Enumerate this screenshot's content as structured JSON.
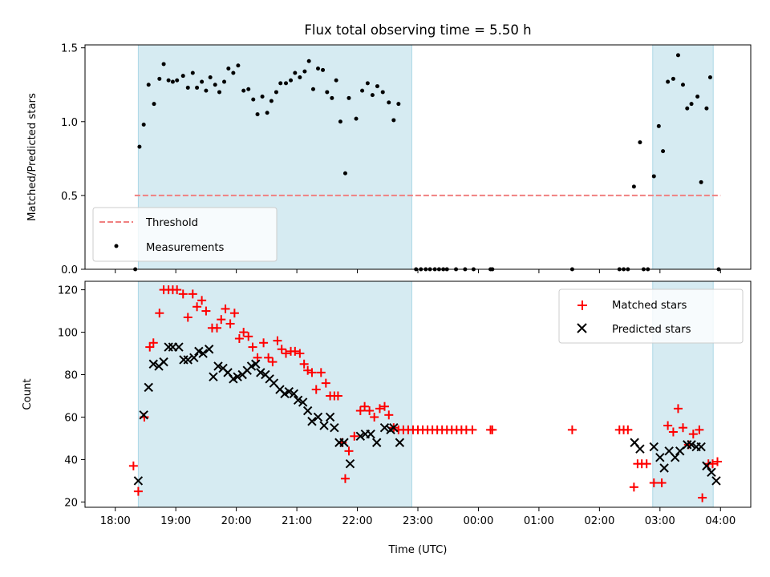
{
  "title": "Flux total observing time = 5.50 h",
  "top_ylabel": "Matched/Predicted stars",
  "bottom_ylabel": "Count",
  "xlabel": "Time (UTC)",
  "top_legend": {
    "threshold": "Threshold",
    "measurements": "Measurements"
  },
  "bottom_legend": {
    "matched": "Matched stars",
    "predicted": "Predicted stars"
  },
  "colors": {
    "shade": "#add8e6",
    "threshold": "#f08080",
    "matched": "#ff0000",
    "predicted": "#000000",
    "measure": "#000000"
  },
  "chart_data": [
    {
      "type": "scatter",
      "title": "Flux total observing time = 5.50 h",
      "xlabel": "",
      "ylabel": "Matched/Predicted stars",
      "x_unit": "hours since 18:00 UTC",
      "x_tick_labels": [
        "18:00",
        "19:00",
        "20:00",
        "21:00",
        "22:00",
        "23:00",
        "00:00",
        "01:00",
        "02:00",
        "03:00",
        "04:00"
      ],
      "xlim": [
        -0.5,
        10.5
      ],
      "ylim": [
        0,
        1.52
      ],
      "y_ticks": [
        0.0,
        0.5,
        1.0,
        1.5
      ],
      "shaded_intervals": [
        [
          0.38,
          4.9
        ],
        [
          8.88,
          9.88
        ]
      ],
      "threshold": {
        "name": "Threshold",
        "y": 0.5,
        "x_range": [
          0.32,
          10.0
        ]
      },
      "legend_position": "lower-left",
      "series": [
        {
          "name": "Measurements",
          "points": [
            [
              0.33,
              0.0
            ],
            [
              0.4,
              0.83
            ],
            [
              0.47,
              0.98
            ],
            [
              0.55,
              1.25
            ],
            [
              0.64,
              1.12
            ],
            [
              0.73,
              1.29
            ],
            [
              0.8,
              1.39
            ],
            [
              0.88,
              1.28
            ],
            [
              0.95,
              1.27
            ],
            [
              1.02,
              1.28
            ],
            [
              1.12,
              1.31
            ],
            [
              1.2,
              1.23
            ],
            [
              1.28,
              1.33
            ],
            [
              1.35,
              1.23
            ],
            [
              1.43,
              1.27
            ],
            [
              1.5,
              1.21
            ],
            [
              1.57,
              1.3
            ],
            [
              1.65,
              1.25
            ],
            [
              1.72,
              1.2
            ],
            [
              1.8,
              1.27
            ],
            [
              1.87,
              1.36
            ],
            [
              1.95,
              1.33
            ],
            [
              2.03,
              1.38
            ],
            [
              2.12,
              1.21
            ],
            [
              2.2,
              1.22
            ],
            [
              2.28,
              1.15
            ],
            [
              2.35,
              1.05
            ],
            [
              2.43,
              1.17
            ],
            [
              2.51,
              1.06
            ],
            [
              2.58,
              1.14
            ],
            [
              2.66,
              1.2
            ],
            [
              2.73,
              1.26
            ],
            [
              2.82,
              1.26
            ],
            [
              2.9,
              1.28
            ],
            [
              2.97,
              1.33
            ],
            [
              3.05,
              1.3
            ],
            [
              3.13,
              1.34
            ],
            [
              3.2,
              1.41
            ],
            [
              3.27,
              1.22
            ],
            [
              3.35,
              1.36
            ],
            [
              3.43,
              1.35
            ],
            [
              3.5,
              1.2
            ],
            [
              3.58,
              1.16
            ],
            [
              3.65,
              1.28
            ],
            [
              3.72,
              1.0
            ],
            [
              3.8,
              0.65
            ],
            [
              3.86,
              1.16
            ],
            [
              3.98,
              1.02
            ],
            [
              4.08,
              1.21
            ],
            [
              4.17,
              1.26
            ],
            [
              4.25,
              1.18
            ],
            [
              4.33,
              1.24
            ],
            [
              4.42,
              1.2
            ],
            [
              4.52,
              1.13
            ],
            [
              4.6,
              1.01
            ],
            [
              4.68,
              1.12
            ],
            [
              4.97,
              0.0
            ],
            [
              5.05,
              0.0
            ],
            [
              5.13,
              0.0
            ],
            [
              5.2,
              0.0
            ],
            [
              5.28,
              0.0
            ],
            [
              5.35,
              0.0
            ],
            [
              5.42,
              0.0
            ],
            [
              5.48,
              0.0
            ],
            [
              5.63,
              0.0
            ],
            [
              5.78,
              0.0
            ],
            [
              5.92,
              0.0
            ],
            [
              6.2,
              0.0
            ],
            [
              6.23,
              0.0
            ],
            [
              7.55,
              0.0
            ],
            [
              8.33,
              0.0
            ],
            [
              8.4,
              0.0
            ],
            [
              8.47,
              0.0
            ],
            [
              8.57,
              0.56
            ],
            [
              8.67,
              0.86
            ],
            [
              8.73,
              0.0
            ],
            [
              8.8,
              0.0
            ],
            [
              8.9,
              0.63
            ],
            [
              8.98,
              0.97
            ],
            [
              9.05,
              0.8
            ],
            [
              9.13,
              1.27
            ],
            [
              9.22,
              1.29
            ],
            [
              9.3,
              1.45
            ],
            [
              9.38,
              1.25
            ],
            [
              9.45,
              1.09
            ],
            [
              9.52,
              1.12
            ],
            [
              9.62,
              1.17
            ],
            [
              9.68,
              0.59
            ],
            [
              9.77,
              1.09
            ],
            [
              9.83,
              1.3
            ],
            [
              9.97,
              0.0
            ]
          ]
        }
      ]
    },
    {
      "type": "scatter",
      "title": "",
      "xlabel": "Time (UTC)",
      "ylabel": "Count",
      "x_unit": "hours since 18:00 UTC",
      "x_tick_labels": [
        "18:00",
        "19:00",
        "20:00",
        "21:00",
        "22:00",
        "23:00",
        "00:00",
        "01:00",
        "02:00",
        "03:00",
        "04:00"
      ],
      "xlim": [
        -0.5,
        10.5
      ],
      "ylim": [
        17.5,
        124
      ],
      "y_ticks": [
        20,
        40,
        60,
        80,
        100,
        120
      ],
      "shaded_intervals": [
        [
          0.38,
          4.9
        ],
        [
          8.88,
          9.88
        ]
      ],
      "legend_position": "upper-right",
      "series": [
        {
          "name": "Matched stars",
          "marker": "plus",
          "points": [
            [
              0.3,
              37
            ],
            [
              0.38,
              25
            ],
            [
              0.48,
              60
            ],
            [
              0.57,
              93
            ],
            [
              0.63,
              95
            ],
            [
              0.73,
              109
            ],
            [
              0.8,
              120
            ],
            [
              0.88,
              120
            ],
            [
              0.95,
              120
            ],
            [
              1.02,
              120
            ],
            [
              1.12,
              118
            ],
            [
              1.2,
              107
            ],
            [
              1.28,
              118
            ],
            [
              1.35,
              112
            ],
            [
              1.43,
              115
            ],
            [
              1.5,
              110
            ],
            [
              1.6,
              102
            ],
            [
              1.68,
              102
            ],
            [
              1.75,
              106
            ],
            [
              1.82,
              111
            ],
            [
              1.9,
              104
            ],
            [
              1.97,
              109
            ],
            [
              2.05,
              97
            ],
            [
              2.12,
              100
            ],
            [
              2.2,
              98
            ],
            [
              2.27,
              93
            ],
            [
              2.35,
              88
            ],
            [
              2.45,
              95
            ],
            [
              2.53,
              88
            ],
            [
              2.6,
              86
            ],
            [
              2.68,
              96
            ],
            [
              2.75,
              92
            ],
            [
              2.82,
              90
            ],
            [
              2.9,
              91
            ],
            [
              2.97,
              91
            ],
            [
              3.05,
              90
            ],
            [
              3.12,
              85
            ],
            [
              3.18,
              82
            ],
            [
              3.25,
              81
            ],
            [
              3.32,
              73
            ],
            [
              3.4,
              81
            ],
            [
              3.48,
              76
            ],
            [
              3.55,
              70
            ],
            [
              3.62,
              70
            ],
            [
              3.68,
              70
            ],
            [
              3.75,
              48
            ],
            [
              3.8,
              31
            ],
            [
              3.86,
              44
            ],
            [
              3.95,
              51
            ],
            [
              4.05,
              63
            ],
            [
              4.12,
              65
            ],
            [
              4.2,
              63
            ],
            [
              4.28,
              60
            ],
            [
              4.37,
              64
            ],
            [
              4.45,
              65
            ],
            [
              4.52,
              61
            ],
            [
              4.6,
              55
            ],
            [
              4.68,
              54
            ],
            [
              4.76,
              54
            ],
            [
              4.84,
              54
            ],
            [
              4.92,
              54
            ],
            [
              5.0,
              54
            ],
            [
              5.08,
              54
            ],
            [
              5.16,
              54
            ],
            [
              5.24,
              54
            ],
            [
              5.32,
              54
            ],
            [
              5.4,
              54
            ],
            [
              5.48,
              54
            ],
            [
              5.56,
              54
            ],
            [
              5.64,
              54
            ],
            [
              5.72,
              54
            ],
            [
              5.8,
              54
            ],
            [
              5.9,
              54
            ],
            [
              6.2,
              54
            ],
            [
              6.23,
              54
            ],
            [
              7.55,
              54
            ],
            [
              8.33,
              54
            ],
            [
              8.4,
              54
            ],
            [
              8.47,
              54
            ],
            [
              8.57,
              27
            ],
            [
              8.63,
              38
            ],
            [
              8.7,
              38
            ],
            [
              8.78,
              38
            ],
            [
              8.9,
              29
            ],
            [
              9.03,
              29
            ],
            [
              9.13,
              56
            ],
            [
              9.22,
              53
            ],
            [
              9.3,
              64
            ],
            [
              9.38,
              55
            ],
            [
              9.47,
              47
            ],
            [
              9.55,
              52
            ],
            [
              9.65,
              54
            ],
            [
              9.7,
              22
            ],
            [
              9.8,
              38
            ],
            [
              9.87,
              38
            ],
            [
              9.95,
              39
            ]
          ]
        },
        {
          "name": "Predicted stars",
          "marker": "x",
          "points": [
            [
              0.38,
              30
            ],
            [
              0.47,
              61
            ],
            [
              0.55,
              74
            ],
            [
              0.63,
              85
            ],
            [
              0.72,
              84
            ],
            [
              0.8,
              86
            ],
            [
              0.88,
              93
            ],
            [
              0.95,
              93
            ],
            [
              1.05,
              93
            ],
            [
              1.13,
              87
            ],
            [
              1.2,
              87
            ],
            [
              1.3,
              88
            ],
            [
              1.38,
              91
            ],
            [
              1.45,
              90
            ],
            [
              1.55,
              92
            ],
            [
              1.62,
              79
            ],
            [
              1.7,
              84
            ],
            [
              1.78,
              83
            ],
            [
              1.86,
              81
            ],
            [
              1.95,
              78
            ],
            [
              2.02,
              79
            ],
            [
              2.1,
              80
            ],
            [
              2.18,
              82
            ],
            [
              2.25,
              84
            ],
            [
              2.32,
              85
            ],
            [
              2.4,
              81
            ],
            [
              2.48,
              80
            ],
            [
              2.55,
              78
            ],
            [
              2.62,
              76
            ],
            [
              2.72,
              73
            ],
            [
              2.8,
              71
            ],
            [
              2.87,
              72
            ],
            [
              2.95,
              71
            ],
            [
              3.02,
              68
            ],
            [
              3.1,
              67
            ],
            [
              3.18,
              63
            ],
            [
              3.25,
              58
            ],
            [
              3.35,
              60
            ],
            [
              3.45,
              56
            ],
            [
              3.55,
              60
            ],
            [
              3.62,
              55
            ],
            [
              3.7,
              48
            ],
            [
              3.78,
              48
            ],
            [
              3.88,
              38
            ],
            [
              4.05,
              51
            ],
            [
              4.13,
              52
            ],
            [
              4.22,
              52
            ],
            [
              4.32,
              48
            ],
            [
              4.45,
              55
            ],
            [
              4.55,
              54
            ],
            [
              4.6,
              55
            ],
            [
              4.7,
              48
            ],
            [
              8.58,
              48
            ],
            [
              8.67,
              45
            ],
            [
              8.9,
              46
            ],
            [
              9.0,
              41
            ],
            [
              9.07,
              36
            ],
            [
              9.15,
              44
            ],
            [
              9.25,
              41
            ],
            [
              9.33,
              44
            ],
            [
              9.45,
              47
            ],
            [
              9.52,
              47
            ],
            [
              9.6,
              46
            ],
            [
              9.68,
              46
            ],
            [
              9.77,
              37
            ],
            [
              9.85,
              34
            ],
            [
              9.93,
              30
            ]
          ]
        }
      ]
    }
  ]
}
